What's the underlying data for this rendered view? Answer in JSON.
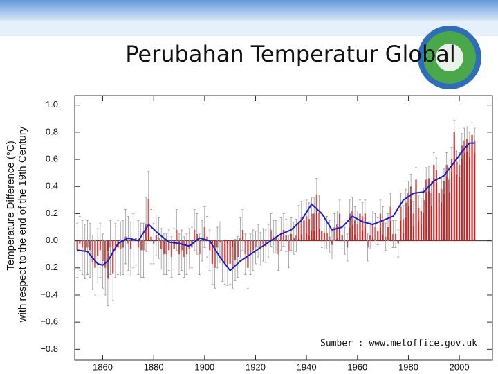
{
  "slide": {
    "title": "Perubahan Temperatur Global",
    "source": "Sumber : www.metoffice.gov.uk"
  },
  "chart_data": {
    "type": "bar",
    "ylabel": [
      "Temperature Difference (°C)",
      "with respect to the end of the 19th Century"
    ],
    "x": [
      1850,
      1851,
      1852,
      1853,
      1854,
      1855,
      1856,
      1857,
      1858,
      1859,
      1860,
      1861,
      1862,
      1863,
      1864,
      1865,
      1866,
      1867,
      1868,
      1869,
      1870,
      1871,
      1872,
      1873,
      1874,
      1875,
      1876,
      1877,
      1878,
      1879,
      1880,
      1881,
      1882,
      1883,
      1884,
      1885,
      1886,
      1887,
      1888,
      1889,
      1890,
      1891,
      1892,
      1893,
      1894,
      1895,
      1896,
      1897,
      1898,
      1899,
      1900,
      1901,
      1902,
      1903,
      1904,
      1905,
      1906,
      1907,
      1908,
      1909,
      1910,
      1911,
      1912,
      1913,
      1914,
      1915,
      1916,
      1917,
      1918,
      1919,
      1920,
      1921,
      1922,
      1923,
      1924,
      1925,
      1926,
      1927,
      1928,
      1929,
      1930,
      1931,
      1932,
      1933,
      1934,
      1935,
      1936,
      1937,
      1938,
      1939,
      1940,
      1941,
      1942,
      1943,
      1944,
      1945,
      1946,
      1947,
      1948,
      1949,
      1950,
      1951,
      1952,
      1953,
      1954,
      1955,
      1956,
      1957,
      1958,
      1959,
      1960,
      1961,
      1962,
      1963,
      1964,
      1965,
      1966,
      1967,
      1968,
      1969,
      1970,
      1971,
      1972,
      1973,
      1974,
      1975,
      1976,
      1977,
      1978,
      1979,
      1980,
      1981,
      1982,
      1983,
      1984,
      1985,
      1986,
      1987,
      1988,
      1989,
      1990,
      1991,
      1992,
      1993,
      1994,
      1995,
      1996,
      1997,
      1998,
      1999,
      2000,
      2001,
      2002,
      2003,
      2004,
      2005,
      2006
    ],
    "values": [
      -0.07,
      -0.02,
      -0.05,
      -0.08,
      -0.05,
      -0.07,
      -0.16,
      -0.2,
      -0.11,
      -0.07,
      -0.15,
      -0.2,
      -0.28,
      -0.05,
      -0.24,
      -0.07,
      -0.05,
      -0.06,
      -0.05,
      0.03,
      -0.02,
      -0.06,
      0.0,
      0.02,
      -0.05,
      -0.07,
      -0.07,
      0.12,
      0.31,
      0.03,
      -0.02,
      0.04,
      0.02,
      -0.06,
      -0.1,
      -0.1,
      -0.07,
      -0.12,
      -0.06,
      0.08,
      -0.1,
      -0.07,
      -0.12,
      -0.1,
      -0.06,
      -0.05,
      0.08,
      0.05,
      -0.1,
      0.0,
      0.1,
      0.03,
      -0.07,
      -0.17,
      -0.2,
      -0.05,
      -0.01,
      -0.15,
      -0.17,
      -0.18,
      -0.17,
      -0.2,
      -0.14,
      -0.12,
      0.02,
      0.08,
      -0.1,
      -0.2,
      -0.1,
      -0.07,
      -0.05,
      0.0,
      -0.06,
      -0.03,
      -0.04,
      0.0,
      0.08,
      0.03,
      0.03,
      -0.1,
      0.05,
      0.08,
      0.04,
      -0.08,
      0.05,
      0.02,
      0.04,
      0.14,
      0.17,
      0.15,
      0.18,
      0.16,
      0.2,
      0.2,
      0.34,
      0.21,
      0.07,
      0.06,
      0.06,
      0.03,
      -0.03,
      0.1,
      0.12,
      0.2,
      0.04,
      0.0,
      -0.05,
      0.2,
      0.22,
      0.15,
      0.12,
      0.2,
      0.18,
      0.2,
      -0.05,
      0.04,
      0.12,
      0.1,
      0.07,
      0.2,
      0.15,
      0.03,
      0.1,
      0.25,
      0.05,
      0.05,
      -0.02,
      0.25,
      0.16,
      0.28,
      0.35,
      0.4,
      0.2,
      0.45,
      0.24,
      0.22,
      0.3,
      0.45,
      0.46,
      0.35,
      0.56,
      0.52,
      0.35,
      0.38,
      0.44,
      0.56,
      0.45,
      0.6,
      0.8,
      0.58,
      0.56,
      0.7,
      0.74,
      0.75,
      0.71,
      0.78,
      0.74
    ],
    "errors": [
      0.2,
      0.2,
      0.2,
      0.2,
      0.2,
      0.2,
      0.2,
      0.2,
      0.2,
      0.2,
      0.2,
      0.2,
      0.2,
      0.2,
      0.2,
      0.2,
      0.2,
      0.2,
      0.2,
      0.2,
      0.2,
      0.2,
      0.2,
      0.2,
      0.2,
      0.2,
      0.2,
      0.2,
      0.2,
      0.2,
      0.15,
      0.15,
      0.15,
      0.15,
      0.15,
      0.15,
      0.15,
      0.15,
      0.15,
      0.15,
      0.15,
      0.15,
      0.15,
      0.15,
      0.15,
      0.15,
      0.15,
      0.15,
      0.15,
      0.15,
      0.15,
      0.15,
      0.15,
      0.15,
      0.15,
      0.15,
      0.15,
      0.15,
      0.15,
      0.15,
      0.15,
      0.15,
      0.15,
      0.15,
      0.15,
      0.15,
      0.15,
      0.15,
      0.15,
      0.15,
      0.12,
      0.12,
      0.12,
      0.12,
      0.12,
      0.12,
      0.12,
      0.12,
      0.12,
      0.12,
      0.12,
      0.12,
      0.12,
      0.12,
      0.12,
      0.12,
      0.12,
      0.12,
      0.12,
      0.12,
      0.12,
      0.12,
      0.12,
      0.12,
      0.12,
      0.12,
      0.12,
      0.12,
      0.12,
      0.12,
      0.1,
      0.1,
      0.1,
      0.1,
      0.1,
      0.1,
      0.1,
      0.1,
      0.1,
      0.1,
      0.1,
      0.1,
      0.1,
      0.1,
      0.1,
      0.1,
      0.1,
      0.1,
      0.1,
      0.1,
      0.1,
      0.1,
      0.1,
      0.1,
      0.1,
      0.1,
      0.1,
      0.1,
      0.1,
      0.1,
      0.09,
      0.09,
      0.09,
      0.09,
      0.09,
      0.09,
      0.09,
      0.09,
      0.09,
      0.09,
      0.09,
      0.09,
      0.09,
      0.09,
      0.09,
      0.09,
      0.09,
      0.09,
      0.09,
      0.09,
      0.09,
      0.09,
      0.09,
      0.09,
      0.09,
      0.09,
      0.09
    ],
    "color": "#d42020",
    "error_color": "#999999",
    "smooth": {
      "color": "#1a1ad0",
      "x": [
        1850,
        1854,
        1858,
        1860,
        1862,
        1866,
        1870,
        1874,
        1878,
        1882,
        1886,
        1890,
        1894,
        1898,
        1902,
        1906,
        1910,
        1914,
        1918,
        1922,
        1926,
        1930,
        1934,
        1938,
        1942,
        1946,
        1950,
        1954,
        1958,
        1962,
        1966,
        1970,
        1974,
        1978,
        1982,
        1986,
        1990,
        1994,
        1998,
        2002,
        2004,
        2006
      ],
      "values": [
        -0.07,
        -0.08,
        -0.17,
        -0.18,
        -0.15,
        -0.02,
        0.02,
        0.0,
        0.12,
        0.05,
        -0.01,
        -0.02,
        -0.04,
        0.02,
        0.0,
        -0.12,
        -0.22,
        -0.15,
        -0.1,
        -0.05,
        0.0,
        0.05,
        0.08,
        0.15,
        0.27,
        0.2,
        0.08,
        0.1,
        0.18,
        0.14,
        0.12,
        0.15,
        0.18,
        0.3,
        0.35,
        0.36,
        0.44,
        0.48,
        0.58,
        0.68,
        0.72,
        0.72
      ]
    },
    "xlim": [
      1849,
      2013
    ],
    "xticks": [
      1860,
      1880,
      1900,
      1920,
      1940,
      1960,
      1980,
      2000
    ],
    "ylim": [
      -0.88,
      1.07
    ],
    "yticks": [
      {
        "value": 1.0,
        "label": "1.0"
      },
      0.8,
      0.6,
      0.4,
      0.2,
      {
        "value": 0.0,
        "label": "0.0"
      },
      {
        "value": -0.2,
        "label": "−0.2"
      },
      {
        "value": -0.4,
        "label": "−0.4"
      },
      {
        "value": -0.6,
        "label": "−0.6"
      },
      {
        "value": -0.8,
        "label": "−0.8"
      }
    ]
  }
}
